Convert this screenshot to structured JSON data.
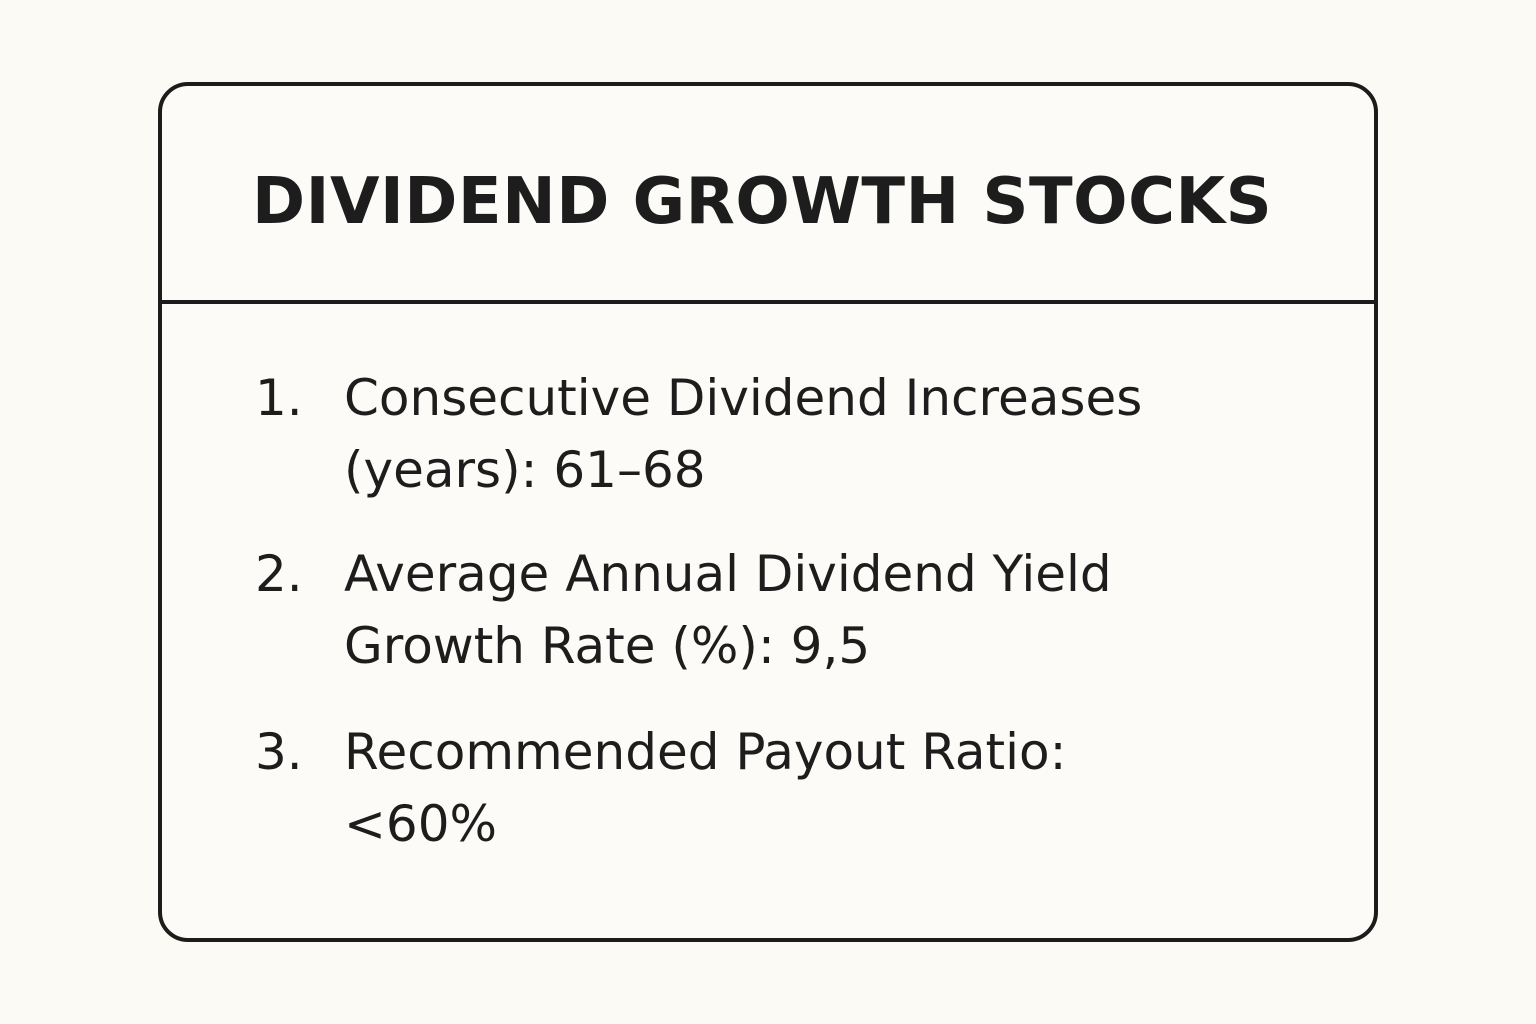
{
  "card": {
    "title": "DIVIDEND GROWTH STOCKS",
    "items": [
      {
        "number": "1.",
        "line1": "Consecutive Dividend Increases",
        "line2": "(years): 61–68"
      },
      {
        "number": "2.",
        "line1": "Average Annual Dividend Yield",
        "line2": "Growth Rate (%): 9,5"
      },
      {
        "number": "3.",
        "line1": "Recommended Payout Ratio:",
        "line2": "<60%"
      }
    ]
  }
}
